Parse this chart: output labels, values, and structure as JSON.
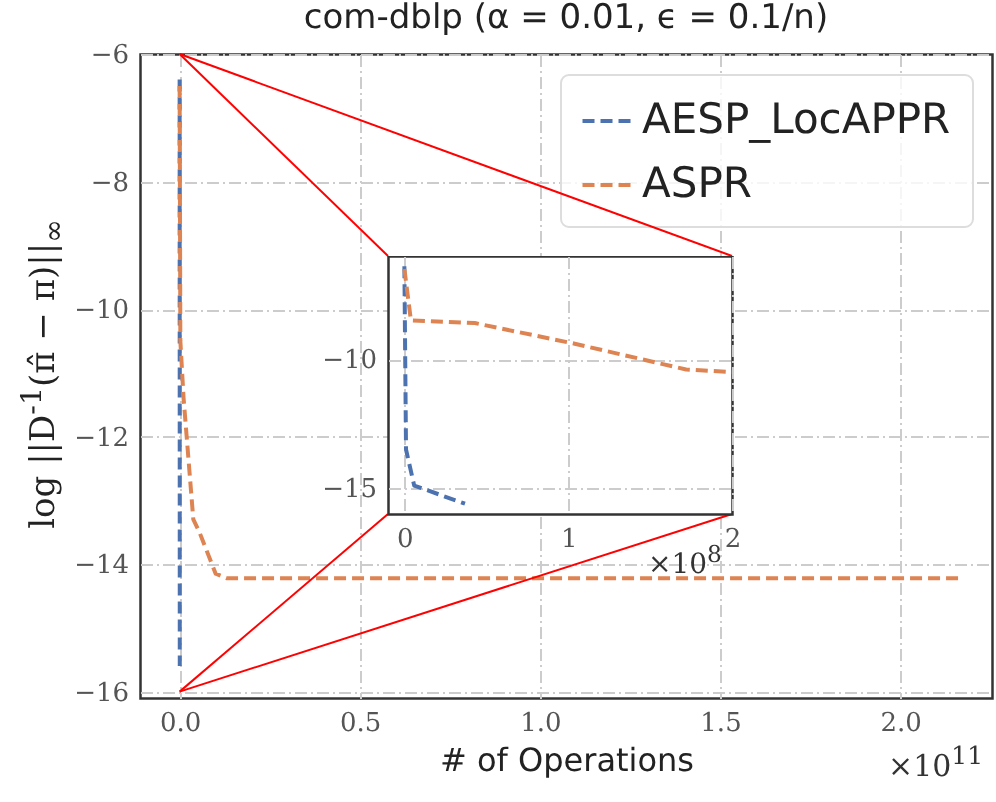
{
  "chart_data": [
    {
      "type": "line",
      "title": "com-dblp (α = 0.01, ϵ = 0.1/n)",
      "xlabel": "# of Operations",
      "ylabel": "log ||D$^{-1}$(π̂ − π)||$_{∞}$",
      "annotations": [
        "×10$^{11}$"
      ],
      "series": [
        {
          "name": "AESP_LocAPPR",
          "color": "#4c72b0",
          "x": [
            0,
            0.0004
          ],
          "values": [
            -6.4,
            -15.6
          ]
        },
        {
          "name": "ASPR",
          "color": "#dd8452",
          "x": [
            0,
            0.002,
            0.011,
            0.038,
            0.055,
            0.1,
            0.13,
            2.17
          ],
          "values": [
            -6.5,
            -10.5,
            -11.4,
            -13.3,
            -13.5,
            -14.15,
            -14.22,
            -14.22
          ]
        }
      ],
      "xlim": [
        -0.11,
        2.255
      ],
      "xticks": [
        {
          "value": 0,
          "label": "0.0"
        },
        0.5,
        {
          "value": 1,
          "label": "1.0"
        },
        1.5,
        {
          "value": 2,
          "label": "2.0"
        }
      ],
      "ylim": [
        -16.1,
        -6
      ],
      "yticks": [
        -16,
        -14,
        -12,
        -10,
        -8,
        -6
      ],
      "grid": true,
      "legend": "top right",
      "line_style": "dashed"
    },
    {
      "type": "line",
      "annotations": [
        "×10$^{8}$"
      ],
      "series": [
        {
          "color": "#4c72b0",
          "x": [
            0,
            0.01,
            0.06,
            0.37
          ],
          "values": [
            -6.4,
            -13.5,
            -14.9,
            -15.6
          ]
        },
        {
          "color": "#dd8452",
          "x": [
            0,
            0.04,
            0.43,
            1.04,
            1.72,
            2.0
          ],
          "values": [
            -6.5,
            -8.5,
            -8.6,
            -9.4,
            -10.4,
            -10.5
          ]
        }
      ],
      "xlim": [
        -0.1,
        2.0
      ],
      "xticks": [
        0,
        1,
        2
      ],
      "ylim": [
        -16,
        -6
      ],
      "yticks": [
        -15,
        -10
      ],
      "grid": true,
      "line_style": "dashed"
    }
  ]
}
